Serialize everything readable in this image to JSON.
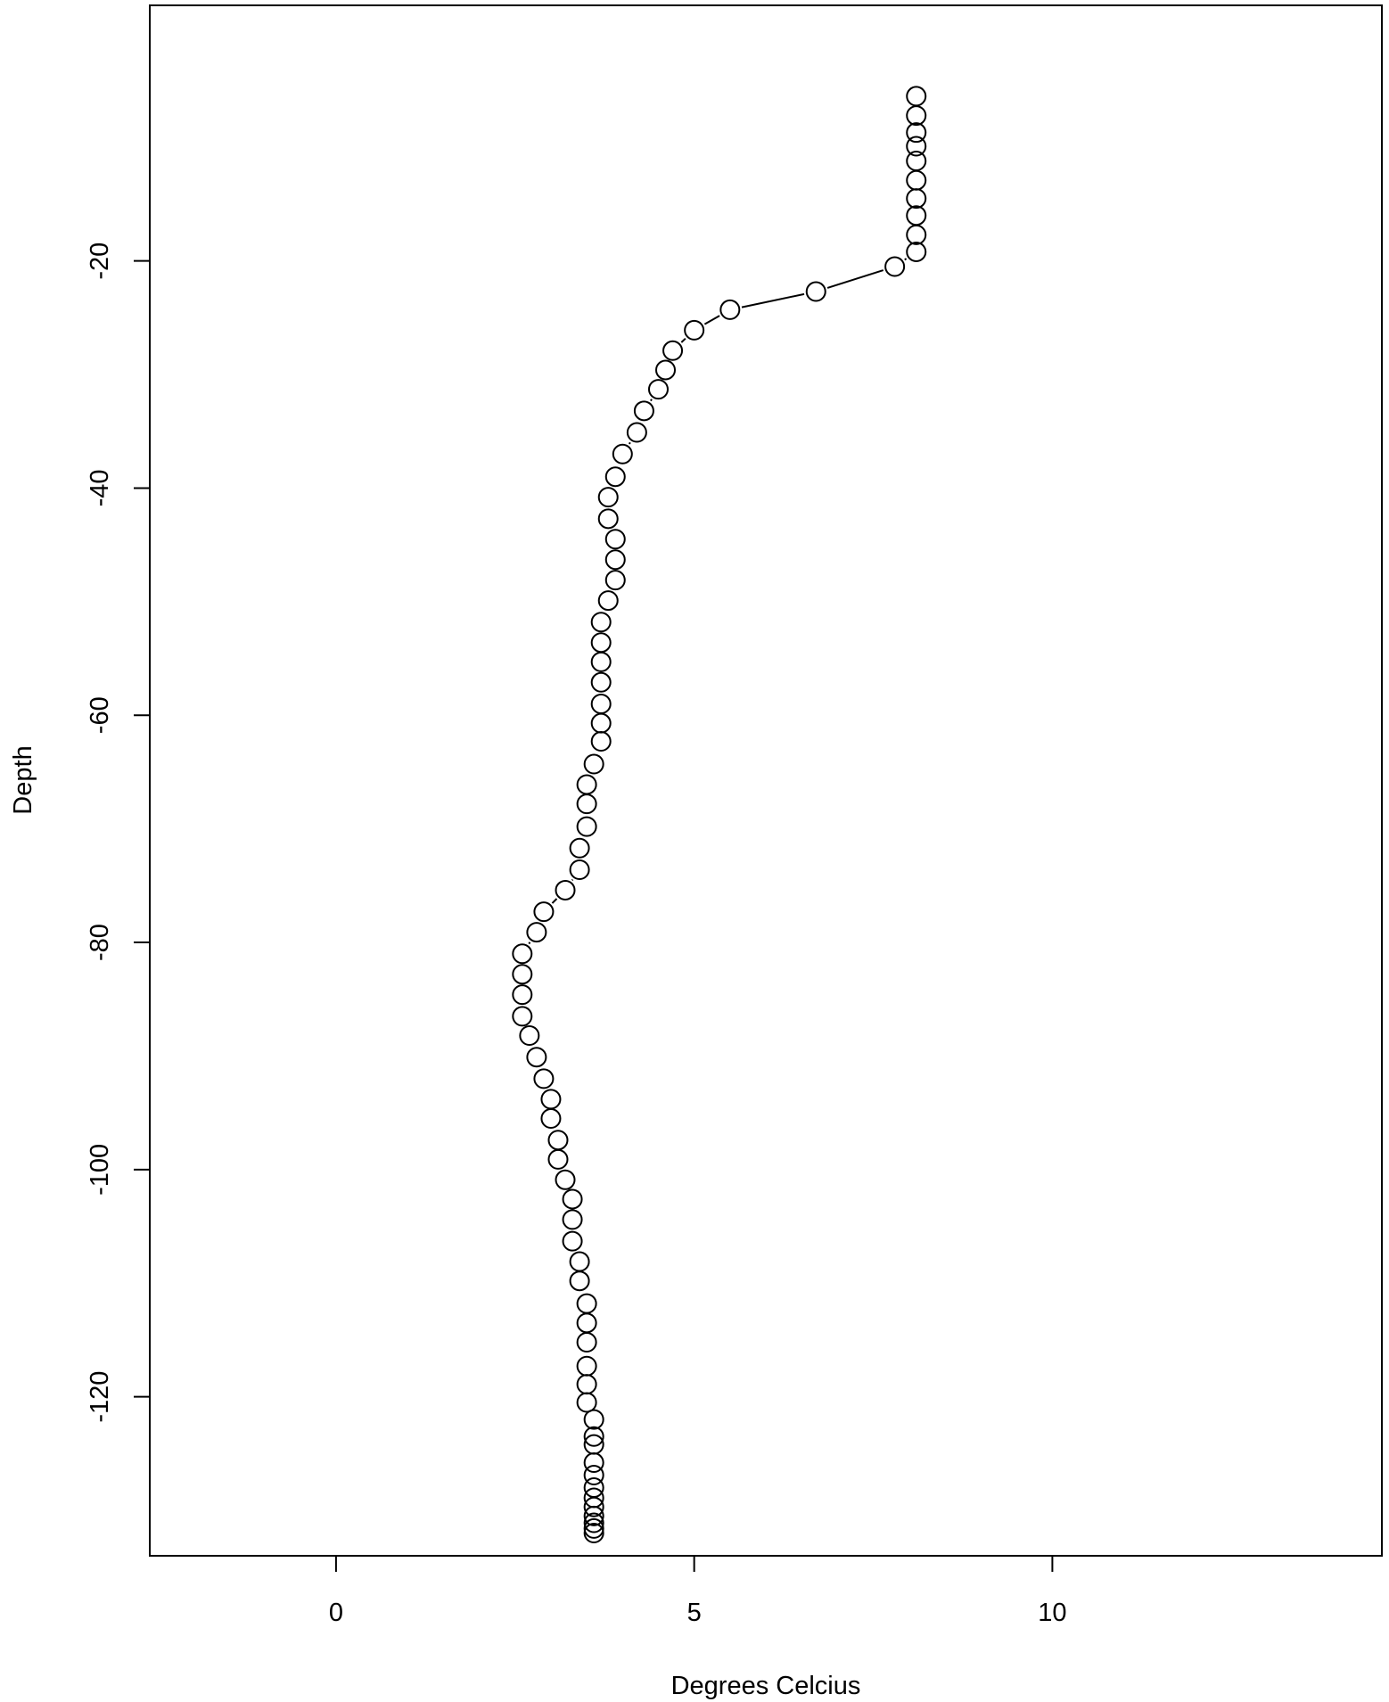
{
  "chart_data": {
    "type": "scatter",
    "title": "",
    "xlabel": "Degrees Celcius",
    "ylabel": "Depth",
    "xlim": [
      -2.6,
      14.6
    ],
    "ylim": [
      -134,
      2.5
    ],
    "xticks": [
      0,
      5,
      10
    ],
    "yticks": [
      -20,
      -40,
      -60,
      -80,
      -100,
      -120
    ],
    "grid": false,
    "legend": "none",
    "marker": "open-circle",
    "connected": true,
    "series": [
      {
        "x": [
          8.1,
          8.1,
          8.1,
          8.1,
          8.1,
          8.1,
          8.1,
          8.1,
          8.1,
          8.1,
          7.8,
          6.7,
          5.5,
          5.0,
          4.7,
          4.6,
          4.5,
          4.3,
          4.2,
          4.0,
          3.9,
          3.8,
          3.8,
          3.9,
          3.9,
          3.9,
          3.8,
          3.7,
          3.7,
          3.7,
          3.7,
          3.7,
          3.7,
          3.7,
          3.6,
          3.5,
          3.5,
          3.5,
          3.4,
          3.4,
          3.2,
          2.9,
          2.8,
          2.6,
          2.6,
          2.6,
          2.6,
          2.7,
          2.8,
          2.9,
          3.0,
          3.0,
          3.1,
          3.1,
          3.2,
          3.3,
          3.3,
          3.3,
          3.4,
          3.4,
          3.5,
          3.5,
          3.5,
          3.5,
          3.5,
          3.5,
          3.6,
          3.6,
          3.6,
          3.6,
          3.6,
          3.6,
          3.6,
          3.6,
          3.6,
          3.6,
          3.6,
          3.6
        ],
        "y": [
          -5.5,
          -7.2,
          -8.7,
          -9.9,
          -11.2,
          -12.9,
          -14.5,
          -16.0,
          -17.7,
          -19.2,
          -20.5,
          -22.7,
          -24.3,
          -26.1,
          -27.9,
          -29.6,
          -31.3,
          -33.2,
          -35.1,
          -37.0,
          -39.0,
          -40.8,
          -42.7,
          -44.5,
          -46.3,
          -48.1,
          -49.9,
          -51.8,
          -53.6,
          -55.3,
          -57.1,
          -59.0,
          -60.7,
          -62.3,
          -64.3,
          -66.1,
          -67.8,
          -69.8,
          -71.7,
          -73.6,
          -75.4,
          -77.3,
          -79.1,
          -81.0,
          -82.8,
          -84.6,
          -86.5,
          -88.2,
          -90.1,
          -92.0,
          -93.8,
          -95.5,
          -97.4,
          -99.1,
          -100.9,
          -102.6,
          -104.4,
          -106.3,
          -108.1,
          -109.8,
          -111.8,
          -113.5,
          -115.2,
          -117.3,
          -118.9,
          -120.5,
          -122.0,
          -123.5,
          -124.2,
          -125.8,
          -126.9,
          -128.0,
          -128.9,
          -129.7,
          -130.5,
          -131.1,
          -131.6,
          -132.0
        ]
      }
    ]
  }
}
